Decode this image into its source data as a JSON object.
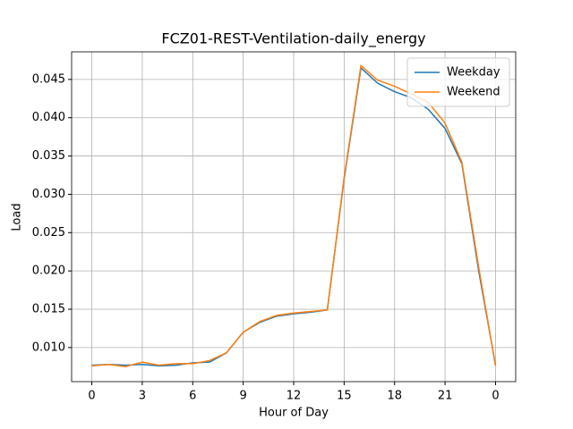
{
  "chart_data": {
    "type": "line",
    "title": "FCZ01-REST-Ventilation-daily_energy",
    "xlabel": "Hour of Day",
    "ylabel": "Load",
    "x": [
      0,
      1,
      2,
      3,
      4,
      5,
      6,
      7,
      8,
      9,
      10,
      11,
      12,
      13,
      14,
      15,
      16,
      17,
      18,
      19,
      20,
      21,
      22,
      23,
      24
    ],
    "series": [
      {
        "name": "Weekday",
        "color": "#1f77b4",
        "values": [
          0.0077,
          0.0078,
          0.0077,
          0.0078,
          0.0076,
          0.0077,
          0.008,
          0.0081,
          0.0093,
          0.012,
          0.0133,
          0.0141,
          0.0144,
          0.0146,
          0.0149,
          0.032,
          0.0465,
          0.0445,
          0.0434,
          0.0426,
          0.0411,
          0.0386,
          0.034,
          0.02,
          0.0077
        ]
      },
      {
        "name": "Weekend",
        "color": "#ff7f0e",
        "values": [
          0.0076,
          0.0078,
          0.0075,
          0.0081,
          0.0077,
          0.0079,
          0.0079,
          0.0083,
          0.0093,
          0.012,
          0.0134,
          0.0142,
          0.0145,
          0.0147,
          0.0149,
          0.0322,
          0.0468,
          0.0449,
          0.0441,
          0.0431,
          0.042,
          0.0393,
          0.0342,
          0.0205,
          0.0076
        ]
      }
    ],
    "xlim": [
      -1.2,
      25.2
    ],
    "xticks": [
      0,
      3,
      6,
      9,
      12,
      15,
      18,
      21,
      {
        "value": 24,
        "label": "0"
      }
    ],
    "ylim": [
      0.00555,
      0.0486
    ],
    "yticks": [
      {
        "value": 0.01,
        "label": "0.010"
      },
      0.015,
      {
        "value": 0.02,
        "label": "0.020"
      },
      0.025,
      {
        "value": 0.03,
        "label": "0.030"
      },
      0.035,
      {
        "value": 0.04,
        "label": "0.040"
      },
      0.045
    ],
    "grid": true,
    "legend": "upper-right"
  }
}
